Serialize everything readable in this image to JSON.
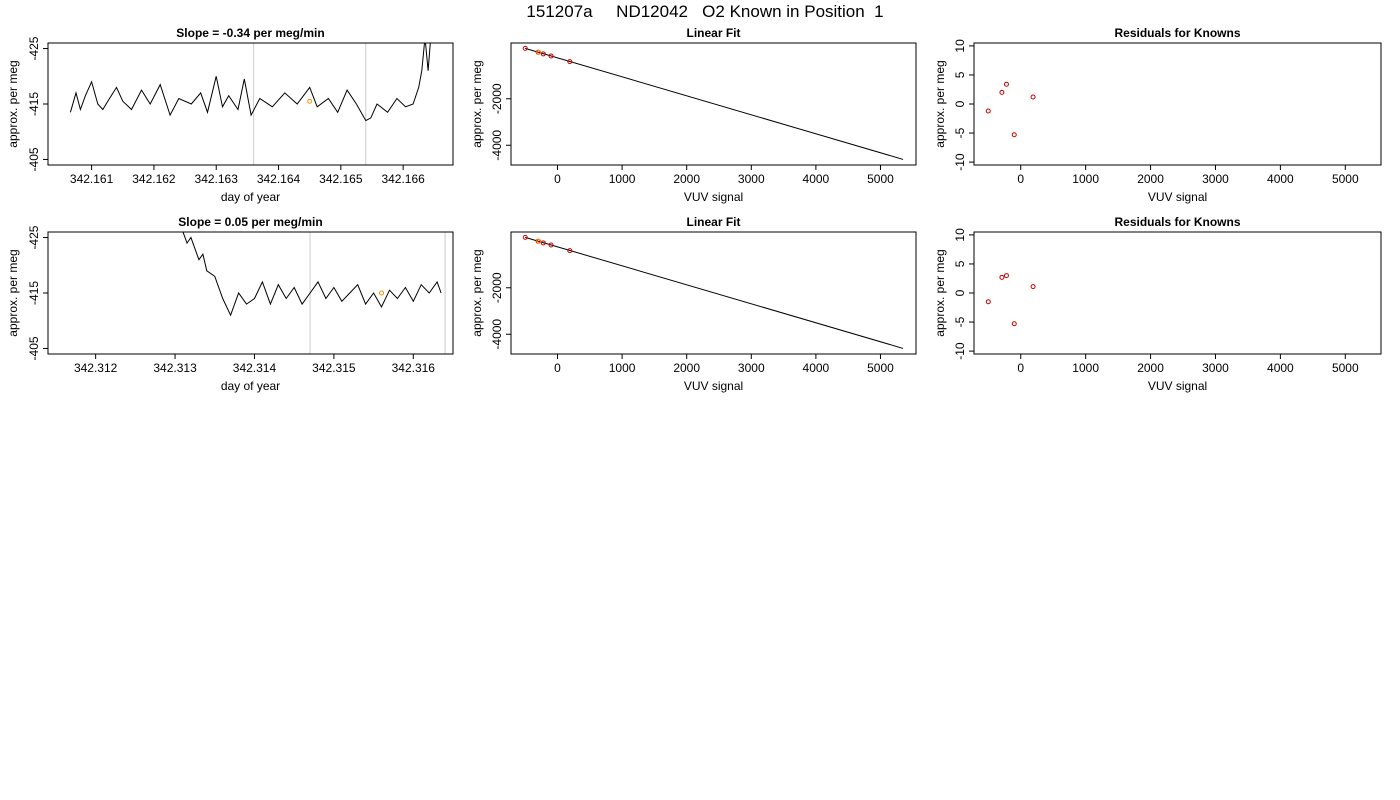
{
  "main_title": "151207a     ND12042   O2 Known in Position  1",
  "chart_data": [
    {
      "type": "line",
      "title": "Slope =  -0.34  per meg/min",
      "xlabel": "day of year",
      "ylabel": "approx. per meg",
      "xlim": [
        342.1603,
        342.1668
      ],
      "ylim": [
        -426,
        -404
      ],
      "yreverse": true,
      "xticks": [
        342.161,
        342.162,
        342.163,
        342.164,
        342.165,
        342.166
      ],
      "xtick_labels": [
        "342.161",
        "342.162",
        "342.163",
        "342.164",
        "342.165",
        "342.166"
      ],
      "yticks": [
        -405,
        -415,
        -425
      ],
      "ytick_labels": [
        "-405",
        "-415",
        "-425"
      ],
      "vlines": [
        342.1636,
        342.1654
      ],
      "vline_color": "#cccccc",
      "line_color": "#000000",
      "series": [
        {
          "x": [
            342.16066,
            342.16075,
            342.16082,
            342.1609,
            342.161,
            342.1611,
            342.16118,
            342.16126,
            342.1614,
            342.1615,
            342.16164,
            342.1618,
            342.16194,
            342.1621,
            342.16226,
            342.1624,
            342.1626,
            342.16275,
            342.16286,
            342.163,
            342.1631,
            342.1632,
            342.16335,
            342.16345,
            342.16356,
            342.1637,
            342.1639,
            342.1641,
            342.1643,
            342.1645,
            342.16462,
            342.1648,
            342.16495,
            342.1651,
            342.16525,
            342.1654,
            342.16548,
            342.16558,
            342.16575,
            342.1659,
            342.16604,
            342.16616,
            342.16625,
            342.1663,
            342.16635,
            342.1664,
            342.16645
          ],
          "y": [
            -413.5,
            -417,
            -414,
            -416.5,
            -419,
            -415,
            -414,
            -415.5,
            -418,
            -415.5,
            -414,
            -417.5,
            -415,
            -418.5,
            -413,
            -416,
            -415,
            -417,
            -413.5,
            -420,
            -414.5,
            -416.5,
            -414,
            -419.5,
            -413,
            -416,
            -414.5,
            -417,
            -415,
            -418,
            -414.5,
            -416,
            -413.5,
            -417.5,
            -415,
            -412,
            -412.5,
            -415,
            -413.5,
            -416,
            -414.5,
            -415,
            -418,
            -421,
            -427,
            -421,
            -428
          ]
        }
      ],
      "highlight_points": {
        "x": [
          342.1645
        ],
        "y": [
          -415.5
        ],
        "color": "#ff8c00"
      }
    },
    {
      "type": "scatter",
      "title": "Linear Fit",
      "xlabel": "VUV signal",
      "ylabel": "approx. per meg",
      "xlim": [
        -720,
        5550
      ],
      "ylim": [
        -4850,
        400
      ],
      "xticks": [
        0,
        1000,
        2000,
        3000,
        4000,
        5000
      ],
      "xtick_labels": [
        "0",
        "1000",
        "2000",
        "3000",
        "4000",
        "5000"
      ],
      "yticks": [
        -2000,
        -4000
      ],
      "ytick_labels": [
        "-2000",
        "-4000"
      ],
      "fit_line": {
        "x": [
          -500,
          5350
        ],
        "y": [
          170,
          -4610
        ]
      },
      "points": {
        "x": [
          -500,
          -300,
          -220,
          -100,
          190
        ],
        "y": [
          170,
          0,
          -70,
          -160,
          -400
        ]
      },
      "orange_points": {
        "x": [
          -290
        ],
        "y": [
          -5
        ]
      },
      "point_color": "#cc0000",
      "orange_color": "#ff8c00"
    },
    {
      "type": "scatter",
      "title": "Residuals for Knowns",
      "xlabel": "VUV signal",
      "ylabel": "approx. per meg",
      "xlim": [
        -720,
        5550
      ],
      "ylim": [
        -10.5,
        10.5
      ],
      "xticks": [
        0,
        1000,
        2000,
        3000,
        4000,
        5000
      ],
      "xtick_labels": [
        "0",
        "1000",
        "2000",
        "3000",
        "4000",
        "5000"
      ],
      "yticks": [
        10,
        5,
        0,
        -5,
        -10
      ],
      "ytick_labels": [
        "10",
        "5",
        "0",
        "-5",
        "-10"
      ],
      "points": {
        "x": [
          -500,
          -290,
          -220,
          -100,
          190
        ],
        "y": [
          -1.2,
          2,
          3.4,
          -5.3,
          1.2
        ]
      },
      "point_color": "#cc0000"
    },
    {
      "type": "line",
      "title": "Slope =  0.05  per meg/min",
      "xlabel": "day of year",
      "ylabel": "approx. per meg",
      "xlim": [
        342.3114,
        342.3165
      ],
      "ylim": [
        -426,
        -404
      ],
      "yreverse": true,
      "xticks": [
        342.312,
        342.313,
        342.314,
        342.315,
        342.316
      ],
      "xtick_labels": [
        "342.312",
        "342.313",
        "342.314",
        "342.315",
        "342.316"
      ],
      "yticks": [
        -405,
        -415,
        -425
      ],
      "ytick_labels": [
        "-405",
        "-415",
        "-425"
      ],
      "vlines": [
        342.3147,
        342.3164
      ],
      "vline_color": "#cccccc",
      "line_color": "#000000",
      "series": [
        {
          "x": [
            342.3131,
            342.31315,
            342.3132,
            342.31325,
            342.3133,
            342.31335,
            342.3134,
            342.3135,
            342.3136,
            342.3137,
            342.3138,
            342.3139,
            342.314,
            342.3141,
            342.3142,
            342.3143,
            342.3144,
            342.3145,
            342.3146,
            342.3147,
            342.3148,
            342.3149,
            342.315,
            342.3151,
            342.3152,
            342.3153,
            342.3154,
            342.3155,
            342.3156,
            342.3157,
            342.3158,
            342.3159,
            342.316,
            342.3161,
            342.3162,
            342.3163,
            342.31635
          ],
          "y": [
            -426,
            -424,
            -425,
            -423,
            -421,
            -422,
            -419,
            -418,
            -414,
            -411,
            -415,
            -413,
            -414,
            -417,
            -413,
            -416.5,
            -414,
            -416,
            -413,
            -415,
            -417,
            -414,
            -416,
            -413.5,
            -415,
            -416.5,
            -413,
            -415,
            -412.5,
            -415.5,
            -414,
            -416,
            -413.5,
            -416.5,
            -415,
            -417,
            -415
          ]
        }
      ],
      "highlight_points": {
        "x": [
          342.3156
        ],
        "y": [
          -415
        ],
        "color": "#ff8c00"
      }
    },
    {
      "type": "scatter",
      "title": "Linear Fit",
      "xlabel": "VUV signal",
      "ylabel": "approx. per meg",
      "xlim": [
        -720,
        5550
      ],
      "ylim": [
        -4850,
        400
      ],
      "xticks": [
        0,
        1000,
        2000,
        3000,
        4000,
        5000
      ],
      "xtick_labels": [
        "0",
        "1000",
        "2000",
        "3000",
        "4000",
        "5000"
      ],
      "yticks": [
        -2000,
        -4000
      ],
      "ytick_labels": [
        "-2000",
        "-4000"
      ],
      "fit_line": {
        "x": [
          -500,
          5350
        ],
        "y": [
          170,
          -4610
        ]
      },
      "points": {
        "x": [
          -500,
          -300,
          -220,
          -100,
          190
        ],
        "y": [
          170,
          0,
          -70,
          -160,
          -400
        ]
      },
      "orange_points": {
        "x": [
          -290
        ],
        "y": [
          -5
        ]
      },
      "point_color": "#cc0000",
      "orange_color": "#ff8c00"
    },
    {
      "type": "scatter",
      "title": "Residuals for Knowns",
      "xlabel": "VUV signal",
      "ylabel": "approx. per meg",
      "xlim": [
        -720,
        5550
      ],
      "ylim": [
        -10.5,
        10.5
      ],
      "xticks": [
        0,
        1000,
        2000,
        3000,
        4000,
        5000
      ],
      "xtick_labels": [
        "0",
        "1000",
        "2000",
        "3000",
        "4000",
        "5000"
      ],
      "yticks": [
        10,
        5,
        0,
        -5,
        -10
      ],
      "ytick_labels": [
        "10",
        "5",
        "0",
        "-5",
        "-10"
      ],
      "points": {
        "x": [
          -500,
          -290,
          -220,
          -100,
          190
        ],
        "y": [
          -1.5,
          2.7,
          3,
          -5.3,
          1.1
        ]
      },
      "point_color": "#cc0000"
    }
  ]
}
